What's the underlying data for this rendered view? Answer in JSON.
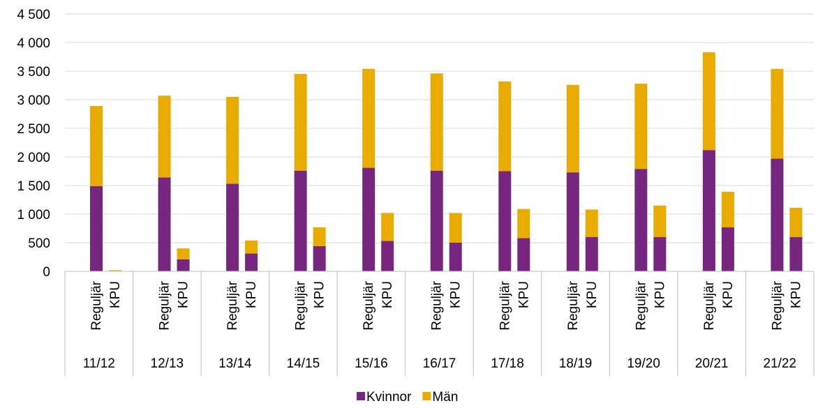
{
  "chart_data": {
    "type": "bar",
    "stacked": true,
    "groups": [
      "11/12",
      "12/13",
      "13/14",
      "14/15",
      "15/16",
      "16/17",
      "17/18",
      "18/19",
      "19/20",
      "20/21",
      "21/22"
    ],
    "subcategories": [
      "Reguljär",
      "KPU"
    ],
    "series": [
      {
        "name": "Kvinnor",
        "color": "#77267f",
        "values": [
          [
            1490,
            0
          ],
          [
            1640,
            210
          ],
          [
            1530,
            310
          ],
          [
            1760,
            440
          ],
          [
            1810,
            530
          ],
          [
            1760,
            500
          ],
          [
            1750,
            580
          ],
          [
            1730,
            600
          ],
          [
            1790,
            600
          ],
          [
            2120,
            770
          ],
          [
            1970,
            600
          ]
        ]
      },
      {
        "name": "Män",
        "color": "#e9ab00",
        "values": [
          [
            1400,
            20
          ],
          [
            1430,
            190
          ],
          [
            1520,
            230
          ],
          [
            1690,
            330
          ],
          [
            1730,
            490
          ],
          [
            1700,
            520
          ],
          [
            1570,
            510
          ],
          [
            1530,
            480
          ],
          [
            1490,
            550
          ],
          [
            1710,
            620
          ],
          [
            1570,
            510
          ]
        ]
      }
    ],
    "yticks": [
      "0",
      "500",
      "1 000",
      "1 500",
      "2 000",
      "2 500",
      "3 000",
      "3 500",
      "4 000",
      "4 500"
    ],
    "ylim": [
      0,
      4500
    ],
    "ytick_step": 500,
    "grid": true,
    "legend_position": "bottom"
  }
}
